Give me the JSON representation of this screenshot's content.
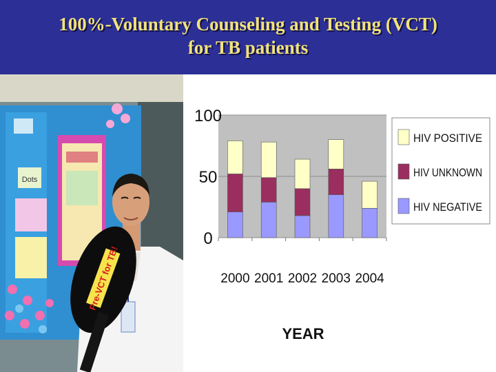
{
  "slide": {
    "title_line1": "100%-Voluntary Counseling and Testing (VCT)",
    "title_line2": "for TB patients"
  },
  "photo": {
    "sign_text": "Pre-VCT for TB!",
    "board_text": "Dots"
  },
  "colors": {
    "background": "#2b2f96",
    "title": "#f2e27a",
    "plot_area": "#c0c0c0",
    "positive": "#ffffc8",
    "unknown": "#9a2f5f",
    "negative": "#9999ff"
  },
  "chart_data": {
    "type": "bar",
    "stacked": true,
    "categories": [
      "2000",
      "2001",
      "2002",
      "2003",
      "2004"
    ],
    "series": [
      {
        "name": "HIV NEGATIVE",
        "values": [
          21,
          29,
          18,
          35,
          24
        ]
      },
      {
        "name": "HIV UNKNOWN",
        "values": [
          31,
          20,
          22,
          21,
          0
        ]
      },
      {
        "name": "HIV POSITIVE",
        "values": [
          27,
          29,
          24,
          24,
          22
        ]
      }
    ],
    "xlabel": "YEAR",
    "ylabel": "",
    "ylim": [
      0,
      100
    ],
    "yticks": [
      "0",
      "50",
      "100"
    ],
    "grid": true,
    "legend_position": "right"
  }
}
